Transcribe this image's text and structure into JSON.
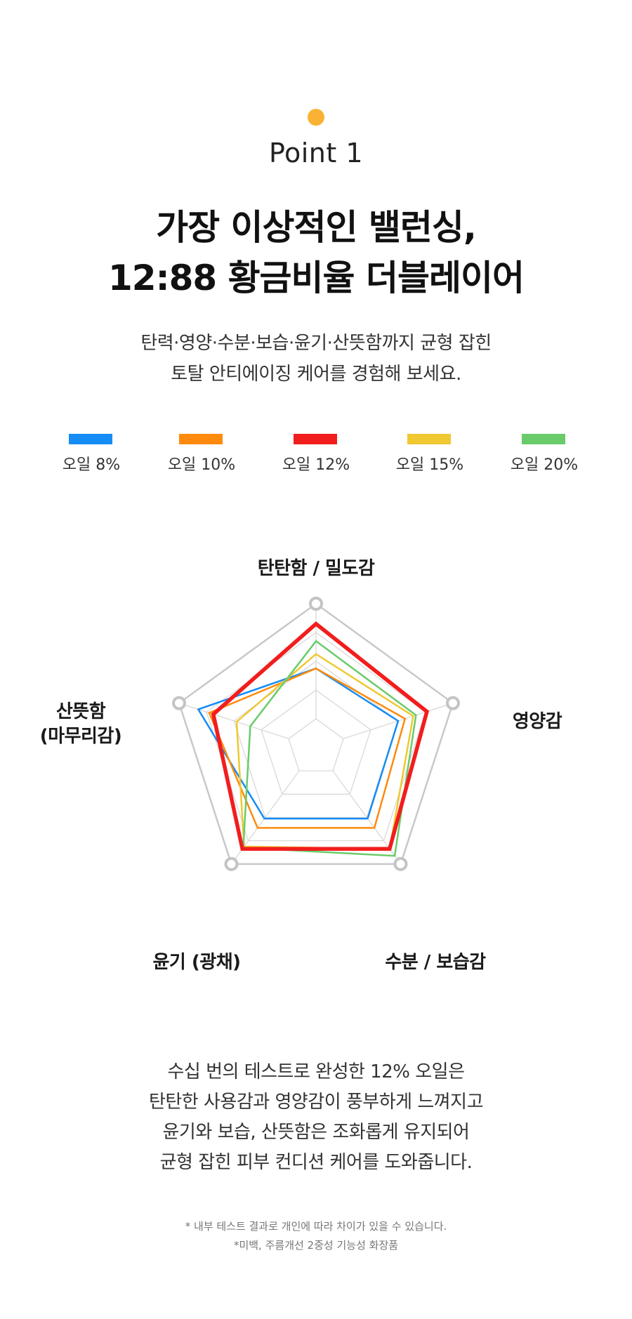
{
  "accent_color": "#F9B233",
  "point_label": "Point 1",
  "headline": [
    "가장 이상적인 밸런싱,",
    "12:88 황금비율 더블레이어"
  ],
  "intro": [
    "탄력·영양·수분·보습·윤기·산뜻함까지 균형 잡힌",
    "토탈 안티에이징 케어를 경험해 보세요."
  ],
  "chart_data": {
    "type": "radar",
    "axes": [
      "탄탄함 / 밀도감",
      "영양감",
      "수분 / 보습감",
      "윤기 (광채)",
      "산뜻함 (마무리감)"
    ],
    "axis_label_lines": [
      [
        "탄탄함 / 밀도감"
      ],
      [
        "영양감"
      ],
      [
        "수분 / 보습감"
      ],
      [
        "윤기 (광채)"
      ],
      [
        "산뜻함",
        "(마무리감)"
      ]
    ],
    "rmax": 10,
    "grid_levels": 5,
    "legend_placement": "top",
    "series": [
      {
        "name": "오일 8%",
        "color": "#168CF5",
        "values": [
          5.5,
          6.0,
          6.1,
          6.1,
          8.6
        ]
      },
      {
        "name": "오일 10%",
        "color": "#FF8A0D",
        "values": [
          5.5,
          6.5,
          6.9,
          6.9,
          7.8
        ]
      },
      {
        "name": "오일 15%",
        "color": "#EFC832",
        "values": [
          6.5,
          7.1,
          8.7,
          8.5,
          5.8
        ]
      },
      {
        "name": "오일 20%",
        "color": "#6ACB6A",
        "values": [
          7.4,
          7.3,
          9.3,
          8.6,
          4.8
        ]
      },
      {
        "name": "오일 12%",
        "color": "#F21D1D",
        "values": [
          8.6,
          8.1,
          8.7,
          8.7,
          7.5
        ]
      }
    ],
    "legend_order": [
      "오일 8%",
      "오일 10%",
      "오일 12%",
      "오일 15%",
      "오일 20%"
    ]
  },
  "outro": [
    "수십 번의 테스트로 완성한 12%  오일은",
    "탄탄한 사용감과 영양감이 풍부하게 느껴지고",
    "윤기와 보습, 산뜻함은 조화롭게 유지되어",
    "균형 잡힌 피부 컨디션 케어를 도와줍니다."
  ],
  "notes": [
    "* 내부 테스트 결과로 개인에 따라 차이가 있을 수 있습니다.",
    "*미백, 주름개선 2중성 기능성 화장품"
  ]
}
